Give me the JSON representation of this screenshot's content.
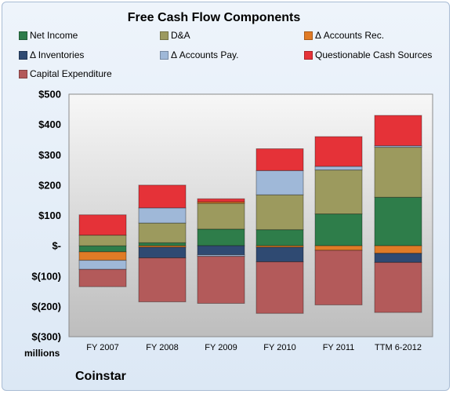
{
  "chart_data": {
    "type": "bar",
    "stacked": true,
    "title": "Free Cash Flow Components",
    "categories": [
      "FY 2007",
      "FY 2008",
      "FY 2009",
      "FY 2010",
      "FY 2011",
      "TTM 6-2012"
    ],
    "y_tick_labels": [
      "$500",
      "$400",
      "$300",
      "$200",
      "$100",
      "$-",
      "$(100)",
      "$(200)",
      "$(300)"
    ],
    "ylim": [
      -300,
      500
    ],
    "ylabel": "millions",
    "grid": false,
    "legend_position": "top",
    "footer": "Coinstar",
    "series": [
      {
        "name": "Net Income",
        "color": "#2e7d4a",
        "values": [
          -20,
          10,
          55,
          53,
          105,
          160
        ]
      },
      {
        "name": "D&A",
        "color": "#9c9a5e",
        "values": [
          35,
          65,
          85,
          115,
          145,
          165
        ]
      },
      {
        "name": "Δ Accounts Rec.",
        "color": "#e07b26",
        "values": [
          -28,
          -5,
          5,
          -5,
          -15,
          -25
        ]
      },
      {
        "name": "Δ Inventories",
        "color": "#2f4a72",
        "values": [
          0,
          -35,
          -30,
          -48,
          0,
          -30
        ]
      },
      {
        "name": "Δ Accounts Pay.",
        "color": "#9fb8d8",
        "values": [
          -30,
          50,
          -5,
          80,
          12,
          5
        ]
      },
      {
        "name": "Questionable Cash Sources",
        "color": "#e53238",
        "values": [
          67,
          75,
          10,
          72,
          98,
          100
        ]
      },
      {
        "name": "Capital Expenditure",
        "color": "#b35a5a",
        "values": [
          -57,
          -145,
          -155,
          -170,
          -180,
          -165
        ]
      }
    ]
  }
}
